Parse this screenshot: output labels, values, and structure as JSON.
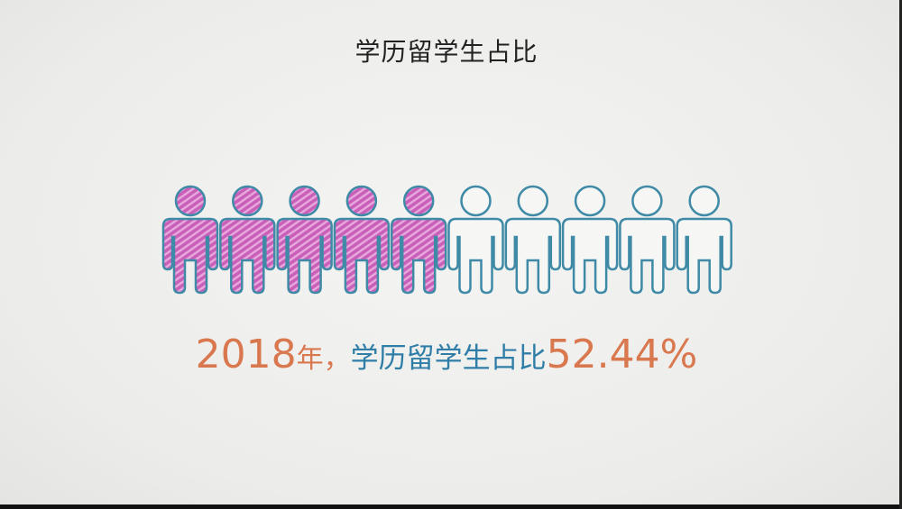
{
  "title": "学历留学生占比",
  "caption": {
    "year": "2018",
    "year_unit": "年，",
    "label": "学历留学生占比",
    "value": "52.44%"
  },
  "chart_data": {
    "type": "pictogram",
    "title": "学历留学生占比",
    "total_icons": 10,
    "filled_icons": 5,
    "value_percent": 52.44,
    "icon": "person-icon",
    "colors": {
      "filled": "#cf6bbf",
      "outline": "#3f8aa6",
      "empty": "#f6f6f4"
    }
  },
  "colors": {
    "year": "#d9784f",
    "label": "#2f7ea8",
    "value": "#d9784f"
  }
}
